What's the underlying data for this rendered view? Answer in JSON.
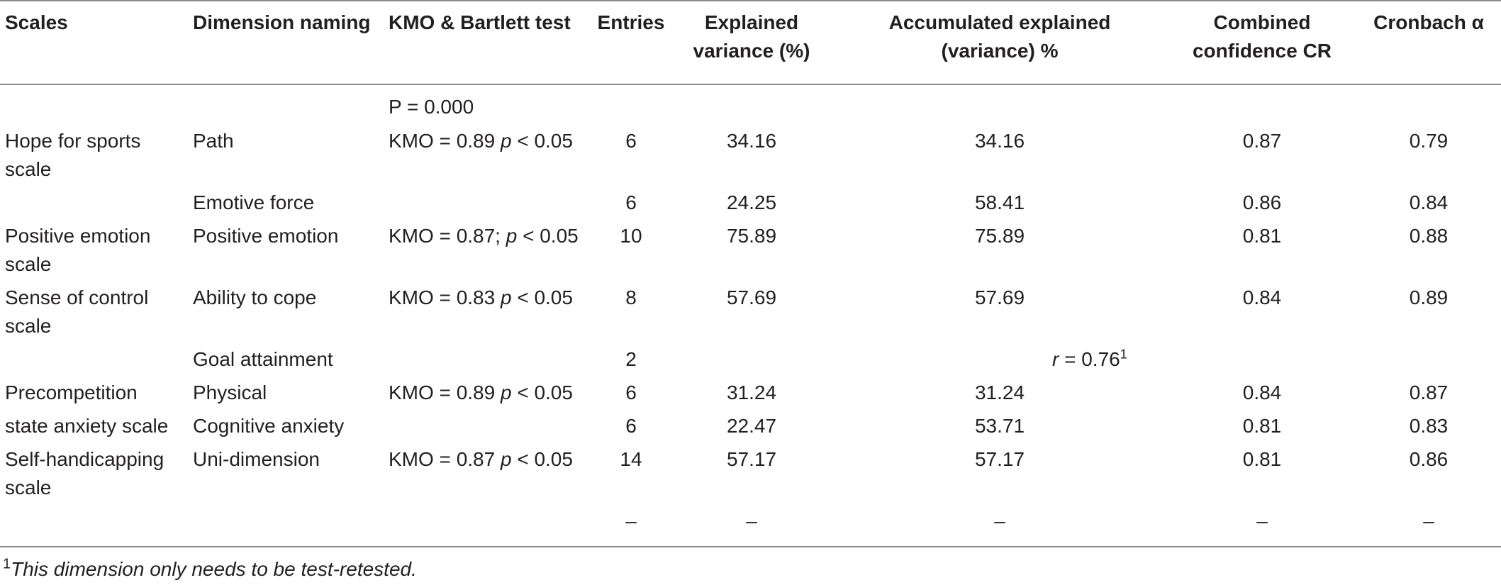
{
  "table": {
    "headers": {
      "scales": "Scales",
      "dimension": "Dimension naming",
      "kmo": "KMO & Bartlett test",
      "entries": "Entries",
      "explained_1": "Explained",
      "explained_2": "variance (%)",
      "accum_1": "Accumulated explained",
      "accum_2": "(variance) %",
      "cr_1": "Combined",
      "cr_2": "confidence CR",
      "alpha": "Cronbach α"
    },
    "p_note": "P =   0.000",
    "rows": [
      {
        "scale_1": "Hope for sports",
        "scale_2": "scale",
        "dimension": "Path",
        "kmo": "KMO = 0.89",
        "p": "p",
        "p_rest": " < 0.05",
        "entries": "6",
        "explained": "34.16",
        "accumulated": "34.16",
        "cr": "0.87",
        "alpha": "0.79"
      },
      {
        "dimension": "Emotive force",
        "entries": "6",
        "explained": "24.25",
        "accumulated": "58.41",
        "cr": "0.86",
        "alpha": "0.84"
      },
      {
        "scale_1": "Positive emotion",
        "scale_2": "scale",
        "dimension": "Positive emotion",
        "kmo": "KMO = 0.87; ",
        "p": "p",
        "p_rest": " < 0.05",
        "entries": "10",
        "explained": "75.89",
        "accumulated": "75.89",
        "cr": "0.81",
        "alpha": "0.88"
      },
      {
        "scale_1": "Sense of control",
        "scale_2": "scale",
        "dimension": "Ability to cope",
        "kmo": "KMO = 0.83",
        "p": "p",
        "p_rest": " < 0.05",
        "entries": "8",
        "explained": "57.69",
        "accumulated": "57.69",
        "cr": "0.84",
        "alpha": "0.89"
      },
      {
        "dimension": "Goal attainment",
        "entries": "2",
        "r_label": "r",
        "r_value": " = 0.76",
        "r_sup": "1"
      },
      {
        "scale_1": "Precompetition",
        "dimension": "Physical",
        "kmo": "KMO = 0.89",
        "p": "p",
        "p_rest": " < 0.05",
        "entries": "6",
        "explained": "31.24",
        "accumulated": "31.24",
        "cr": "0.84",
        "alpha": "0.87"
      },
      {
        "scale_1": "state anxiety scale",
        "dimension": "Cognitive anxiety",
        "entries": "6",
        "explained": "22.47",
        "accumulated": "53.71",
        "cr": "0.81",
        "alpha": "0.83"
      },
      {
        "scale_1": "Self-handicapping",
        "scale_2": "scale",
        "dimension": "Uni-dimension",
        "kmo": "KMO = 0.87",
        "p": "p",
        "p_rest": " < 0.05",
        "entries": "14",
        "explained": "57.17",
        "accumulated": "57.17",
        "cr": "0.81",
        "alpha": "0.86"
      },
      {
        "entries": "–",
        "explained": "–",
        "accumulated": "–",
        "cr": "–",
        "alpha": "–"
      }
    ]
  },
  "footnote": {
    "marker": "1",
    "text": "This dimension only needs to be test-retested."
  }
}
